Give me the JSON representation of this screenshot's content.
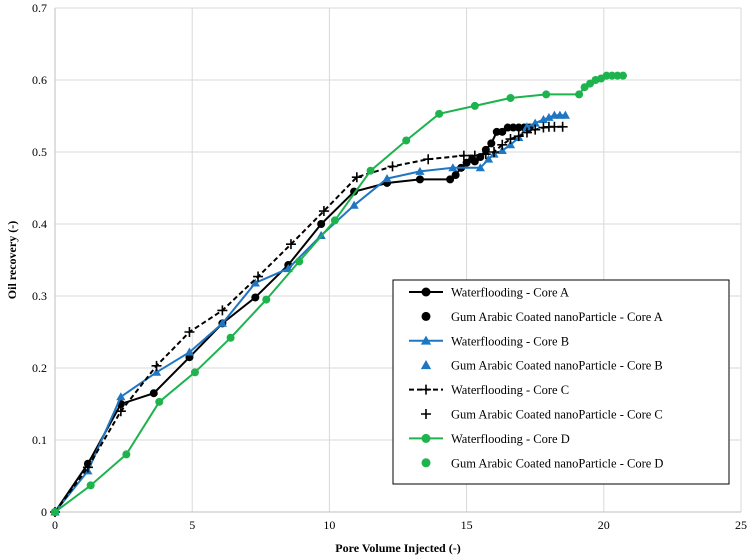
{
  "chart_data": {
    "type": "scatter",
    "title": "",
    "xlabel": "Pore Volume Injected (-)",
    "ylabel": "Oil recovery (-)",
    "xlim": [
      0,
      25
    ],
    "ylim": [
      0,
      0.7
    ],
    "xticks": [
      "0",
      "5",
      "10",
      "15",
      "20",
      "25"
    ],
    "yticks": [
      "0",
      "0.1",
      "0.2",
      "0.3",
      "0.4",
      "0.5",
      "0.6",
      "0.7"
    ],
    "grid": true,
    "legend_position": "bottom-right",
    "colors": {
      "A": "#000000",
      "B": "#1f77c4",
      "C": "#000000",
      "D": "#1db34d"
    },
    "series": [
      {
        "name": "Waterflooding - Core A",
        "core": "A",
        "marker": "circle",
        "line": "solid",
        "x": [
          0,
          1.2,
          2.4,
          3.6,
          4.9,
          6.1,
          7.3,
          8.5,
          9.7,
          10.9,
          12.1,
          13.3,
          14.4,
          14.6,
          14.8,
          15.0,
          15.2,
          15.3,
          15.5,
          15.7,
          15.9,
          16.1,
          16.3,
          16.5,
          16.7,
          16.9,
          17.1,
          17.3
        ],
        "y": [
          0,
          0.067,
          0.15,
          0.165,
          0.215,
          0.262,
          0.298,
          0.343,
          0.4,
          0.445,
          0.457,
          0.462,
          0.462,
          0.468,
          0.478,
          0.485,
          0.49,
          0.487,
          0.493,
          0.503,
          0.512,
          0.528,
          0.528,
          0.534,
          0.534,
          0.534,
          0.534,
          0.534
        ]
      },
      {
        "name": "Gum Arabic Coated nanoParticle - Core A",
        "core": "A",
        "marker": "circle",
        "line": "none",
        "x": [],
        "y": []
      },
      {
        "name": "Waterflooding - Core B",
        "core": "B",
        "marker": "triangle",
        "line": "solid",
        "x": [
          0,
          1.2,
          2.4,
          3.7,
          4.9,
          6.1,
          7.3,
          8.5,
          9.7,
          10.9,
          12.1,
          13.3,
          14.5,
          15.5,
          15.8,
          16.0,
          16.3,
          16.6,
          16.9,
          17.2,
          17.5,
          17.8,
          18.0,
          18.2,
          18.4,
          18.6
        ],
        "y": [
          0,
          0.057,
          0.16,
          0.194,
          0.222,
          0.262,
          0.318,
          0.338,
          0.384,
          0.426,
          0.463,
          0.473,
          0.478,
          0.478,
          0.49,
          0.497,
          0.502,
          0.51,
          0.52,
          0.535,
          0.54,
          0.545,
          0.548,
          0.551,
          0.551,
          0.551
        ]
      },
      {
        "name": "Gum Arabic Coated nanoParticle - Core B",
        "core": "B",
        "marker": "triangle",
        "line": "none",
        "x": [],
        "y": []
      },
      {
        "name": "Waterflooding - Core C",
        "core": "C",
        "marker": "plus",
        "line": "dashed",
        "x": [
          0,
          1.2,
          2.4,
          3.7,
          4.9,
          6.1,
          7.4,
          8.6,
          9.8,
          11.0,
          12.3,
          13.6,
          14.9,
          15.3,
          15.7,
          16.0,
          16.3,
          16.6,
          16.9,
          17.2,
          17.5,
          17.8,
          18.0,
          18.2,
          18.5
        ],
        "y": [
          0,
          0.062,
          0.14,
          0.203,
          0.25,
          0.28,
          0.327,
          0.372,
          0.418,
          0.465,
          0.48,
          0.49,
          0.495,
          0.495,
          0.497,
          0.5,
          0.51,
          0.518,
          0.522,
          0.527,
          0.531,
          0.534,
          0.535,
          0.535,
          0.535
        ]
      },
      {
        "name": "Gum Arabic Coated nanoParticle - Core C",
        "core": "C",
        "marker": "plus",
        "line": "none",
        "x": [],
        "y": []
      },
      {
        "name": "Waterflooding - Core D",
        "core": "D",
        "marker": "circle",
        "line": "solid",
        "x": [
          0,
          1.3,
          2.6,
          3.8,
          5.1,
          6.4,
          7.7,
          8.9,
          10.2,
          11.5,
          12.8,
          14.0,
          15.3,
          16.6,
          17.9,
          19.1,
          19.3,
          19.5,
          19.7,
          19.9,
          20.1,
          20.3,
          20.5,
          20.7
        ],
        "y": [
          0,
          0.037,
          0.08,
          0.153,
          0.194,
          0.242,
          0.295,
          0.348,
          0.405,
          0.474,
          0.516,
          0.553,
          0.564,
          0.575,
          0.58,
          0.58,
          0.59,
          0.595,
          0.6,
          0.602,
          0.606,
          0.606,
          0.606,
          0.606
        ]
      },
      {
        "name": "Gum Arabic Coated nanoParticle - Core D",
        "core": "D",
        "marker": "circle",
        "line": "none",
        "x": [],
        "y": []
      }
    ]
  }
}
